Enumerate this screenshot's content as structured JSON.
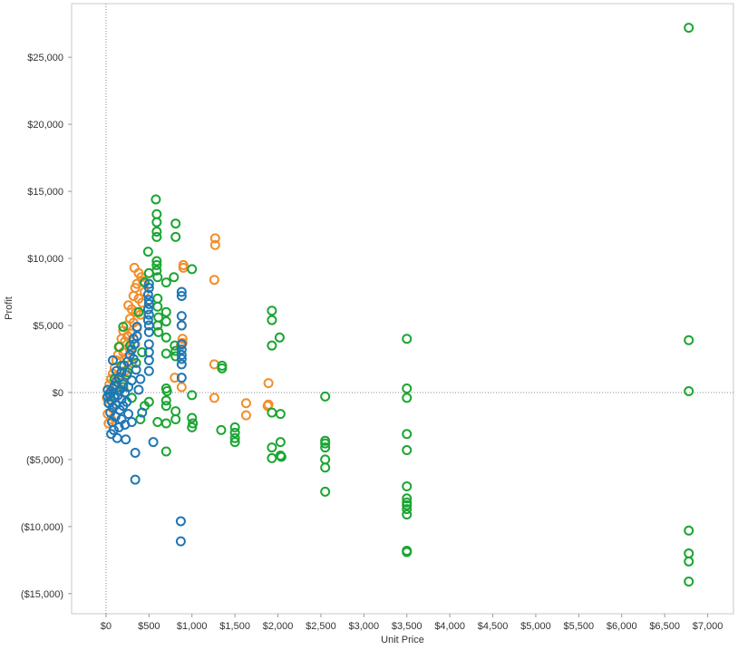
{
  "chart_data": {
    "type": "scatter",
    "title": "",
    "xlabel": "Unit Price",
    "ylabel": "Profit",
    "xlim": [
      -400,
      7300
    ],
    "ylim": [
      -16500,
      29000
    ],
    "x_ticks": [
      0,
      500,
      1000,
      1500,
      2000,
      2500,
      3000,
      3500,
      4000,
      4500,
      5000,
      5500,
      6000,
      6500,
      7000
    ],
    "x_tick_labels": [
      "$0",
      "$500",
      "$1,000",
      "$1,500",
      "$2,000",
      "$2,500",
      "$3,000",
      "$3,500",
      "$4,000",
      "$4,500",
      "$5,000",
      "$5,500",
      "$6,000",
      "$6,500",
      "$7,000"
    ],
    "y_ticks": [
      25000,
      20000,
      15000,
      10000,
      5000,
      0,
      -5000,
      -10000,
      -15000
    ],
    "y_tick_labels": [
      "$25,000",
      "$20,000",
      "$15,000",
      "$10,000",
      "$5,000",
      "$0",
      "($5,000)",
      "($10,000)",
      "($15,000)"
    ],
    "grid": false,
    "zero_lines": true,
    "marker": "hollow-circle",
    "series": [
      {
        "color": "#f28e2b",
        "points": [
          [
            330,
            9300
          ],
          [
            380,
            8900
          ],
          [
            410,
            8600
          ],
          [
            430,
            8300
          ],
          [
            360,
            8100
          ],
          [
            340,
            7800
          ],
          [
            450,
            7500
          ],
          [
            320,
            7200
          ],
          [
            380,
            7000
          ],
          [
            420,
            6700
          ],
          [
            260,
            6500
          ],
          [
            300,
            6200
          ],
          [
            350,
            6000
          ],
          [
            400,
            5800
          ],
          [
            280,
            5500
          ],
          [
            320,
            5200
          ],
          [
            240,
            5000
          ],
          [
            360,
            4800
          ],
          [
            200,
            4600
          ],
          [
            300,
            4400
          ],
          [
            250,
            4200
          ],
          [
            180,
            4000
          ],
          [
            220,
            3800
          ],
          [
            340,
            3600
          ],
          [
            160,
            3400
          ],
          [
            280,
            3200
          ],
          [
            200,
            3000
          ],
          [
            140,
            2800
          ],
          [
            240,
            2600
          ],
          [
            120,
            2400
          ],
          [
            300,
            2200
          ],
          [
            180,
            2000
          ],
          [
            100,
            1800
          ],
          [
            220,
            1600
          ],
          [
            80,
            1400
          ],
          [
            160,
            1200
          ],
          [
            60,
            1000
          ],
          [
            200,
            800
          ],
          [
            40,
            600
          ],
          [
            120,
            400
          ],
          [
            20,
            200
          ],
          [
            60,
            0
          ],
          [
            10,
            -400
          ],
          [
            40,
            -800
          ],
          [
            80,
            -1200
          ],
          [
            20,
            -1600
          ],
          [
            60,
            -2000
          ],
          [
            30,
            -2300
          ],
          [
            900,
            9500
          ],
          [
            900,
            9300
          ],
          [
            880,
            5000
          ],
          [
            890,
            4000
          ],
          [
            890,
            3700
          ],
          [
            870,
            3500
          ],
          [
            800,
            1100
          ],
          [
            880,
            400
          ],
          [
            1270,
            11500
          ],
          [
            1270,
            11000
          ],
          [
            1260,
            8400
          ],
          [
            1260,
            2100
          ],
          [
            1260,
            -400
          ],
          [
            1630,
            -800
          ],
          [
            1630,
            -1700
          ],
          [
            1890,
            700
          ],
          [
            1890,
            -900
          ],
          [
            1880,
            -1000
          ]
        ]
      },
      {
        "color": "#1ba532",
        "points": [
          [
            6780,
            27200
          ],
          [
            6780,
            3900
          ],
          [
            6780,
            100
          ],
          [
            6780,
            -10300
          ],
          [
            6780,
            -12000
          ],
          [
            6780,
            -12600
          ],
          [
            6780,
            -14100
          ],
          [
            3500,
            4000
          ],
          [
            3500,
            300
          ],
          [
            3500,
            -400
          ],
          [
            3500,
            -3100
          ],
          [
            3500,
            -4300
          ],
          [
            3500,
            -7000
          ],
          [
            3500,
            -7900
          ],
          [
            3500,
            -8200
          ],
          [
            3500,
            -8400
          ],
          [
            3500,
            -8700
          ],
          [
            3500,
            -9100
          ],
          [
            3500,
            -11800
          ],
          [
            3500,
            -11900
          ],
          [
            2550,
            -300
          ],
          [
            2550,
            -3600
          ],
          [
            2550,
            -3800
          ],
          [
            2550,
            -4100
          ],
          [
            2550,
            -5000
          ],
          [
            2550,
            -5600
          ],
          [
            2550,
            -7400
          ],
          [
            1930,
            6100
          ],
          [
            1930,
            5400
          ],
          [
            1930,
            3500
          ],
          [
            2020,
            4100
          ],
          [
            1930,
            -1500
          ],
          [
            1930,
            -4100
          ],
          [
            2030,
            -3700
          ],
          [
            1930,
            -4900
          ],
          [
            2030,
            -4700
          ],
          [
            2040,
            -4800
          ],
          [
            2030,
            -1600
          ],
          [
            1350,
            2000
          ],
          [
            1350,
            1800
          ],
          [
            1500,
            -2600
          ],
          [
            1500,
            -3000
          ],
          [
            1500,
            -3400
          ],
          [
            1500,
            -3700
          ],
          [
            1340,
            -2800
          ],
          [
            580,
            14400
          ],
          [
            590,
            13300
          ],
          [
            590,
            12700
          ],
          [
            590,
            12000
          ],
          [
            590,
            11600
          ],
          [
            810,
            12600
          ],
          [
            810,
            11600
          ],
          [
            490,
            10500
          ],
          [
            590,
            9800
          ],
          [
            590,
            9500
          ],
          [
            590,
            9100
          ],
          [
            600,
            8600
          ],
          [
            700,
            8200
          ],
          [
            790,
            8600
          ],
          [
            500,
            8900
          ],
          [
            450,
            8200
          ],
          [
            600,
            7000
          ],
          [
            600,
            6400
          ],
          [
            700,
            6000
          ],
          [
            610,
            5600
          ],
          [
            700,
            5300
          ],
          [
            600,
            5000
          ],
          [
            610,
            4500
          ],
          [
            700,
            4100
          ],
          [
            800,
            3500
          ],
          [
            810,
            3100
          ],
          [
            700,
            2900
          ],
          [
            810,
            2700
          ],
          [
            1000,
            9200
          ],
          [
            700,
            300
          ],
          [
            710,
            100
          ],
          [
            700,
            -600
          ],
          [
            1000,
            -200
          ],
          [
            700,
            -1000
          ],
          [
            1000,
            -1900
          ],
          [
            810,
            -2000
          ],
          [
            700,
            -2300
          ],
          [
            700,
            -4400
          ],
          [
            1010,
            -2300
          ],
          [
            1000,
            -2600
          ],
          [
            600,
            -2200
          ],
          [
            810,
            -1400
          ],
          [
            500,
            -700
          ],
          [
            400,
            -2000
          ],
          [
            450,
            -1000
          ],
          [
            300,
            -400
          ],
          [
            200,
            400
          ],
          [
            250,
            1500
          ],
          [
            350,
            2200
          ],
          [
            150,
            3400
          ],
          [
            200,
            4900
          ],
          [
            100,
            1000
          ],
          [
            50,
            -300
          ],
          [
            420,
            3000
          ],
          [
            380,
            6000
          ],
          [
            280,
            3500
          ],
          [
            180,
            2000
          ]
        ]
      },
      {
        "color": "#1f77b4",
        "points": [
          [
            880,
            7500
          ],
          [
            880,
            7200
          ],
          [
            880,
            5700
          ],
          [
            880,
            5000
          ],
          [
            880,
            3600
          ],
          [
            880,
            3200
          ],
          [
            880,
            2800
          ],
          [
            880,
            2500
          ],
          [
            880,
            2100
          ],
          [
            880,
            1100
          ],
          [
            870,
            -9600
          ],
          [
            870,
            -11100
          ],
          [
            550,
            -3700
          ],
          [
            340,
            -4500
          ],
          [
            340,
            -6500
          ],
          [
            500,
            8100
          ],
          [
            500,
            7800
          ],
          [
            490,
            7300
          ],
          [
            500,
            6900
          ],
          [
            500,
            6600
          ],
          [
            490,
            6200
          ],
          [
            500,
            5800
          ],
          [
            490,
            5400
          ],
          [
            500,
            5000
          ],
          [
            500,
            4500
          ],
          [
            500,
            3600
          ],
          [
            500,
            3000
          ],
          [
            500,
            2400
          ],
          [
            500,
            1600
          ],
          [
            360,
            4900
          ],
          [
            360,
            4200
          ],
          [
            330,
            3600
          ],
          [
            300,
            3200
          ],
          [
            280,
            2800
          ],
          [
            320,
            2500
          ],
          [
            250,
            2300
          ],
          [
            210,
            2000
          ],
          [
            350,
            1700
          ],
          [
            180,
            1500
          ],
          [
            240,
            1300
          ],
          [
            150,
            1100
          ],
          [
            300,
            900
          ],
          [
            120,
            800
          ],
          [
            200,
            600
          ],
          [
            100,
            500
          ],
          [
            260,
            400
          ],
          [
            80,
            300
          ],
          [
            160,
            200
          ],
          [
            60,
            100
          ],
          [
            220,
            0
          ],
          [
            40,
            -100
          ],
          [
            140,
            -200
          ],
          [
            20,
            -300
          ],
          [
            100,
            -400
          ],
          [
            180,
            -500
          ],
          [
            60,
            -600
          ],
          [
            240,
            -700
          ],
          [
            30,
            -800
          ],
          [
            120,
            -900
          ],
          [
            200,
            -1000
          ],
          [
            80,
            -1100
          ],
          [
            160,
            -1300
          ],
          [
            50,
            -1500
          ],
          [
            260,
            -1600
          ],
          [
            110,
            -1800
          ],
          [
            180,
            -2000
          ],
          [
            70,
            -2200
          ],
          [
            220,
            -2400
          ],
          [
            150,
            -2600
          ],
          [
            90,
            -2800
          ],
          [
            300,
            -2200
          ],
          [
            60,
            -3100
          ],
          [
            130,
            -3400
          ],
          [
            230,
            -3500
          ],
          [
            20,
            200
          ],
          [
            120,
            1600
          ],
          [
            80,
            2400
          ],
          [
            320,
            4000
          ],
          [
            400,
            1000
          ],
          [
            420,
            -1500
          ],
          [
            380,
            200
          ]
        ]
      }
    ]
  }
}
